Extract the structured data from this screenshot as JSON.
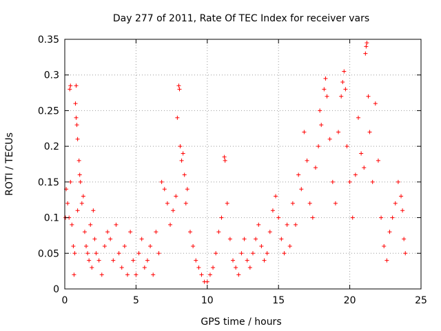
{
  "chart_data": {
    "type": "scatter",
    "title": "Day 277 of 2011, Rate Of TEC Index for receiver vars",
    "xlabel": "GPS time / hours",
    "ylabel": "ROTI / TECUs",
    "xlim": [
      0,
      25
    ],
    "ylim": [
      0,
      0.35
    ],
    "x_ticks": [
      0,
      5,
      10,
      15,
      20,
      25
    ],
    "x_tick_labels": [
      "0",
      "5",
      "10",
      "15",
      "20",
      "25"
    ],
    "y_ticks": [
      0,
      0.05,
      0.1,
      0.15,
      0.2,
      0.25,
      0.3,
      0.35
    ],
    "y_tick_labels": [
      "0",
      "0.05",
      "0.1",
      "0.15",
      "0.2",
      "0.25",
      "0.3",
      "0.35"
    ],
    "grid": true,
    "marker": "+",
    "marker_color": "#ff0000",
    "series": [
      {
        "points": [
          [
            0.05,
            0.1
          ],
          [
            0.1,
            0.14
          ],
          [
            0.2,
            0.12
          ],
          [
            0.3,
            0.1
          ],
          [
            0.35,
            0.28
          ],
          [
            0.4,
            0.285
          ],
          [
            0.4,
            0.15
          ],
          [
            0.5,
            0.09
          ],
          [
            0.6,
            0.06
          ],
          [
            0.65,
            0.02
          ],
          [
            0.7,
            0.05
          ],
          [
            0.75,
            0.26
          ],
          [
            0.8,
            0.285
          ],
          [
            0.8,
            0.24
          ],
          [
            0.85,
            0.23
          ],
          [
            0.9,
            0.21
          ],
          [
            0.9,
            0.11
          ],
          [
            1.0,
            0.18
          ],
          [
            1.05,
            0.16
          ],
          [
            1.1,
            0.15
          ],
          [
            1.2,
            0.12
          ],
          [
            1.3,
            0.13
          ],
          [
            1.4,
            0.08
          ],
          [
            1.5,
            0.06
          ],
          [
            1.6,
            0.05
          ],
          [
            1.7,
            0.04
          ],
          [
            1.8,
            0.09
          ],
          [
            1.9,
            0.03
          ],
          [
            2.0,
            0.11
          ],
          [
            2.1,
            0.07
          ],
          [
            2.2,
            0.05
          ],
          [
            2.4,
            0.04
          ],
          [
            2.6,
            0.02
          ],
          [
            2.8,
            0.06
          ],
          [
            3.0,
            0.08
          ],
          [
            3.2,
            0.07
          ],
          [
            3.4,
            0.04
          ],
          [
            3.6,
            0.09
          ],
          [
            3.8,
            0.05
          ],
          [
            4.0,
            0.03
          ],
          [
            4.2,
            0.06
          ],
          [
            4.4,
            0.02
          ],
          [
            4.6,
            0.08
          ],
          [
            4.8,
            0.04
          ],
          [
            5.0,
            0.02
          ],
          [
            5.2,
            0.05
          ],
          [
            5.4,
            0.07
          ],
          [
            5.6,
            0.03
          ],
          [
            5.8,
            0.04
          ],
          [
            6.0,
            0.06
          ],
          [
            6.2,
            0.02
          ],
          [
            6.4,
            0.08
          ],
          [
            6.6,
            0.05
          ],
          [
            6.8,
            0.15
          ],
          [
            7.0,
            0.14
          ],
          [
            7.2,
            0.12
          ],
          [
            7.4,
            0.09
          ],
          [
            7.6,
            0.11
          ],
          [
            7.8,
            0.13
          ],
          [
            7.9,
            0.24
          ],
          [
            8.0,
            0.285
          ],
          [
            8.05,
            0.28
          ],
          [
            8.1,
            0.2
          ],
          [
            8.2,
            0.18
          ],
          [
            8.3,
            0.19
          ],
          [
            8.4,
            0.16
          ],
          [
            8.5,
            0.12
          ],
          [
            8.6,
            0.14
          ],
          [
            8.8,
            0.08
          ],
          [
            9.0,
            0.06
          ],
          [
            9.2,
            0.04
          ],
          [
            9.4,
            0.03
          ],
          [
            9.6,
            0.02
          ],
          [
            9.8,
            0.01
          ],
          [
            10.0,
            0.01
          ],
          [
            10.2,
            0.02
          ],
          [
            10.4,
            0.03
          ],
          [
            10.6,
            0.05
          ],
          [
            10.8,
            0.08
          ],
          [
            11.0,
            0.1
          ],
          [
            11.2,
            0.185
          ],
          [
            11.25,
            0.18
          ],
          [
            11.4,
            0.12
          ],
          [
            11.6,
            0.07
          ],
          [
            11.8,
            0.04
          ],
          [
            12.0,
            0.03
          ],
          [
            12.2,
            0.02
          ],
          [
            12.4,
            0.05
          ],
          [
            12.6,
            0.07
          ],
          [
            12.8,
            0.04
          ],
          [
            13.0,
            0.03
          ],
          [
            13.2,
            0.05
          ],
          [
            13.4,
            0.07
          ],
          [
            13.6,
            0.09
          ],
          [
            13.8,
            0.06
          ],
          [
            14.0,
            0.04
          ],
          [
            14.2,
            0.05
          ],
          [
            14.4,
            0.08
          ],
          [
            14.6,
            0.11
          ],
          [
            14.8,
            0.13
          ],
          [
            15.0,
            0.1
          ],
          [
            15.2,
            0.07
          ],
          [
            15.4,
            0.05
          ],
          [
            15.6,
            0.09
          ],
          [
            15.8,
            0.06
          ],
          [
            16.0,
            0.12
          ],
          [
            16.2,
            0.09
          ],
          [
            16.4,
            0.16
          ],
          [
            16.6,
            0.14
          ],
          [
            16.8,
            0.22
          ],
          [
            17.0,
            0.18
          ],
          [
            17.2,
            0.12
          ],
          [
            17.4,
            0.1
          ],
          [
            17.6,
            0.17
          ],
          [
            17.8,
            0.2
          ],
          [
            17.9,
            0.25
          ],
          [
            18.0,
            0.23
          ],
          [
            18.2,
            0.28
          ],
          [
            18.3,
            0.295
          ],
          [
            18.4,
            0.27
          ],
          [
            18.6,
            0.21
          ],
          [
            18.8,
            0.15
          ],
          [
            19.0,
            0.12
          ],
          [
            19.2,
            0.22
          ],
          [
            19.4,
            0.27
          ],
          [
            19.5,
            0.29
          ],
          [
            19.6,
            0.305
          ],
          [
            19.7,
            0.28
          ],
          [
            19.8,
            0.2
          ],
          [
            20.0,
            0.15
          ],
          [
            20.2,
            0.1
          ],
          [
            20.4,
            0.16
          ],
          [
            20.6,
            0.24
          ],
          [
            20.8,
            0.19
          ],
          [
            21.0,
            0.17
          ],
          [
            21.1,
            0.33
          ],
          [
            21.15,
            0.34
          ],
          [
            21.2,
            0.345
          ],
          [
            21.3,
            0.27
          ],
          [
            21.4,
            0.22
          ],
          [
            21.6,
            0.15
          ],
          [
            21.8,
            0.26
          ],
          [
            22.0,
            0.18
          ],
          [
            22.2,
            0.1
          ],
          [
            22.4,
            0.06
          ],
          [
            22.6,
            0.04
          ],
          [
            22.8,
            0.08
          ],
          [
            23.0,
            0.1
          ],
          [
            23.2,
            0.12
          ],
          [
            23.4,
            0.15
          ],
          [
            23.6,
            0.13
          ],
          [
            23.7,
            0.11
          ],
          [
            23.8,
            0.07
          ],
          [
            23.9,
            0.05
          ]
        ]
      }
    ]
  }
}
